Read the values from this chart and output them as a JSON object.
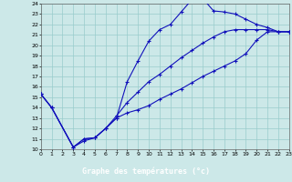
{
  "xlabel": "Graphe des températures (°c)",
  "xlim": [
    0,
    23
  ],
  "ylim": [
    10,
    24
  ],
  "yticks": [
    10,
    11,
    12,
    13,
    14,
    15,
    16,
    17,
    18,
    19,
    20,
    21,
    22,
    23,
    24
  ],
  "xticks": [
    0,
    1,
    2,
    3,
    4,
    5,
    6,
    7,
    8,
    9,
    10,
    11,
    12,
    13,
    14,
    15,
    16,
    17,
    18,
    19,
    20,
    21,
    22,
    23
  ],
  "bg_color": "#cce8e8",
  "grid_color": "#99cccc",
  "line_color": "#1111bb",
  "label_bg": "#0000aa",
  "line1_x": [
    0,
    1,
    3,
    4,
    5,
    6,
    7,
    8,
    9,
    10,
    11,
    12,
    13,
    14,
    15,
    16,
    17,
    18,
    19,
    20,
    21,
    22,
    23
  ],
  "line1_y": [
    15.3,
    14.0,
    10.2,
    10.8,
    11.1,
    12.0,
    13.0,
    16.5,
    18.5,
    20.4,
    21.5,
    22.0,
    23.2,
    24.4,
    24.5,
    23.3,
    23.2,
    23.0,
    22.5,
    22.0,
    21.7,
    21.3,
    21.3
  ],
  "line2_x": [
    0,
    1,
    3,
    4,
    5,
    6,
    7,
    8,
    9,
    10,
    11,
    12,
    13,
    14,
    15,
    16,
    17,
    18,
    19,
    20,
    21,
    22,
    23
  ],
  "line2_y": [
    15.3,
    14.0,
    10.2,
    11.0,
    11.1,
    12.0,
    13.0,
    13.5,
    13.8,
    14.2,
    14.8,
    15.3,
    15.8,
    16.4,
    17.0,
    17.5,
    18.0,
    18.5,
    19.2,
    20.5,
    21.3,
    21.3,
    21.3
  ],
  "line3_x": [
    0,
    1,
    3,
    4,
    5,
    6,
    7,
    8,
    9,
    10,
    11,
    12,
    13,
    14,
    15,
    16,
    17,
    18,
    19,
    20,
    21,
    22,
    23
  ],
  "line3_y": [
    15.3,
    14.0,
    10.2,
    11.0,
    11.1,
    12.0,
    13.2,
    14.5,
    15.5,
    16.5,
    17.2,
    18.0,
    18.8,
    19.5,
    20.2,
    20.8,
    21.3,
    21.5,
    21.5,
    21.5,
    21.5,
    21.3,
    21.3
  ]
}
